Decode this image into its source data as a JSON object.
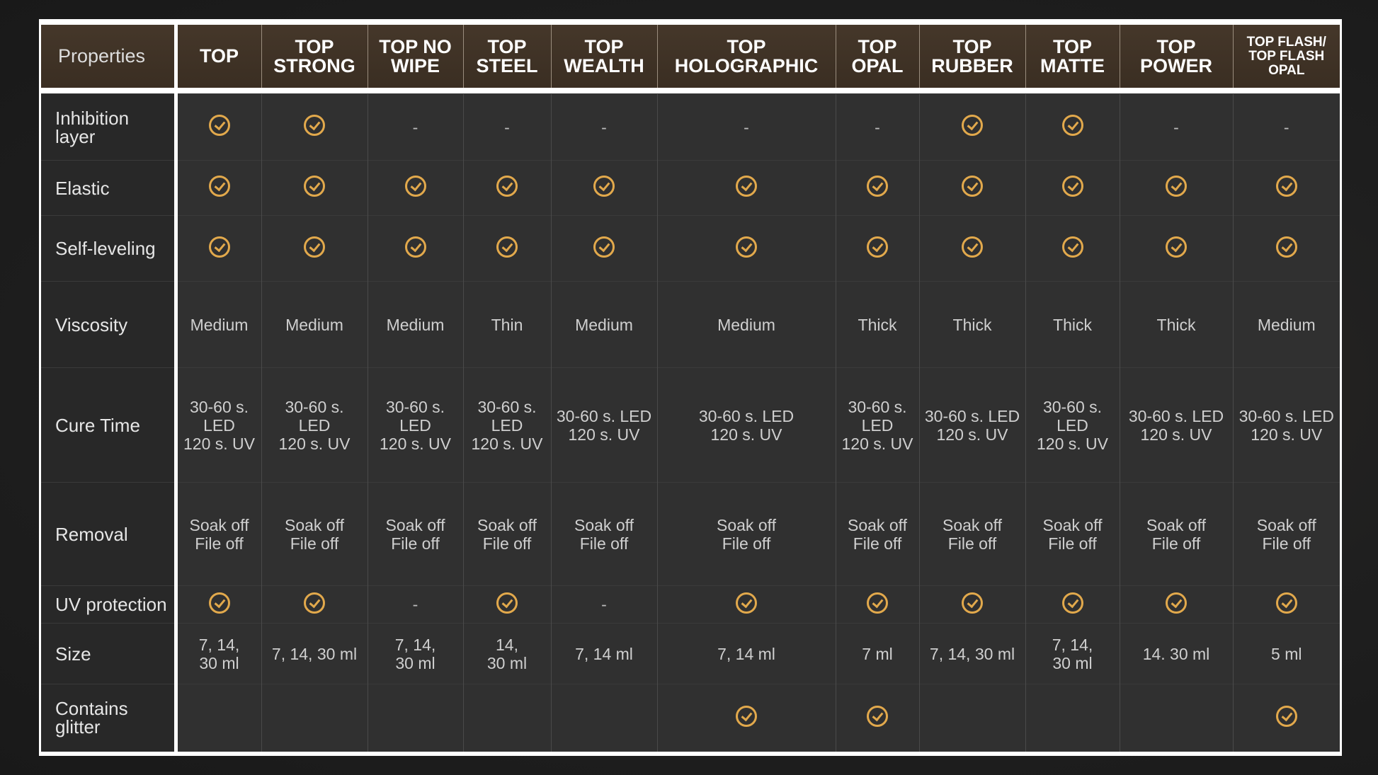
{
  "accent_color": "#e2a94c",
  "header": {
    "properties_label": "Properties",
    "columns": [
      "TOP",
      "TOP STRONG",
      "TOP NO WIPE",
      "TOP STEEL",
      "TOP WEALTH",
      "TOP HOLOGRAPHIC",
      "TOP OPAL",
      "TOP RUBBER",
      "TOP MATTE",
      "TOP POWER",
      "TOP FLASH/ TOP FLASH OPAL"
    ]
  },
  "rows": [
    {
      "label": "Inhibition layer",
      "cells": [
        "check",
        "check",
        "-",
        "-",
        "-",
        "-",
        "-",
        "check",
        "check",
        "-",
        "-"
      ]
    },
    {
      "label": "Elastic",
      "cells": [
        "check",
        "check",
        "check",
        "check",
        "check",
        "check",
        "check",
        "check",
        "check",
        "check",
        "check"
      ]
    },
    {
      "label": "Self-leveling",
      "cells": [
        "check",
        "check",
        "check",
        "check",
        "check",
        "check",
        "check",
        "check",
        "check",
        "check",
        "check"
      ]
    },
    {
      "label": "Viscosity",
      "cells": [
        "Medium",
        "Medium",
        "Medium",
        "Thin",
        "Medium",
        "Medium",
        "Thick",
        "Thick",
        "Thick",
        "Thick",
        "Medium"
      ]
    },
    {
      "label": "Cure Time",
      "cells": [
        "30-60 s.\nLED\n120 s. UV",
        "30-60 s.\nLED\n120 s. UV",
        "30-60 s.\nLED\n120 s. UV",
        "30-60 s.\nLED\n120 s. UV",
        "30-60 s. LED\n120 s. UV",
        "30-60 s. LED\n120 s. UV",
        "30-60 s.\nLED\n120 s. UV",
        "30-60 s. LED\n120 s. UV",
        "30-60 s.\nLED\n120 s. UV",
        "30-60 s. LED\n120 s. UV",
        "30-60 s. LED\n120 s. UV"
      ]
    },
    {
      "label": "Removal",
      "cells": [
        "Soak off\nFile off",
        "Soak off\nFile off",
        "Soak off\nFile off",
        "Soak off\nFile off",
        "Soak off\nFile off",
        "Soak off\nFile off",
        "Soak off\nFile off",
        "Soak off\nFile off",
        "Soak off\nFile off",
        "Soak off\nFile off",
        "Soak off\nFile off"
      ]
    },
    {
      "label": "UV protection",
      "cells": [
        "check",
        "check",
        "-",
        "check",
        "-",
        "check",
        "check",
        "check",
        "check",
        "check",
        "check"
      ]
    },
    {
      "label": "Size",
      "cells": [
        "7, 14,\n30 ml",
        "7, 14, 30 ml",
        "7, 14,\n30 ml",
        "14,\n30 ml",
        "7, 14 ml",
        "7, 14 ml",
        "7 ml",
        "7, 14, 30 ml",
        "7, 14,\n30 ml",
        "14. 30 ml",
        "5 ml"
      ]
    },
    {
      "label": "Contains glitter",
      "cells": [
        "",
        "",
        "",
        "",
        "",
        "check",
        "check",
        "",
        "",
        "",
        "check"
      ]
    }
  ]
}
